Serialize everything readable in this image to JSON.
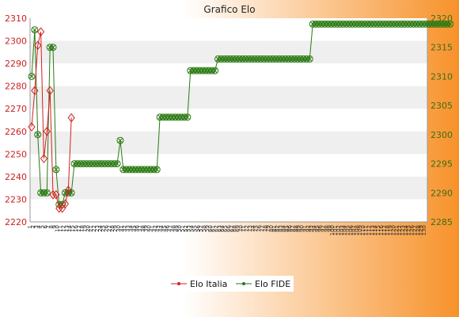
{
  "colors": {
    "background_start": "#ffffff",
    "background_end": "#f7922a",
    "italia": "#d42020",
    "fide": "#2a7a12",
    "band": "#efefef"
  },
  "chart_data": {
    "type": "line",
    "title": "Grafico Elo",
    "xlabel": "",
    "ylabel": "",
    "y_left_lim": [
      2220,
      2310
    ],
    "y_left_ticks": [
      2220,
      2230,
      2240,
      2250,
      2260,
      2270,
      2280,
      2290,
      2300,
      2310
    ],
    "y_right_lim": [
      2285,
      2320
    ],
    "y_right_ticks": [
      2285,
      2290,
      2295,
      2300,
      2305,
      2310,
      2315,
      2320
    ],
    "grid": "horizontal bands",
    "legend_position": "bottom-center",
    "x_tick_labels": [
      "1",
      "2",
      "3",
      "4",
      "5",
      "6",
      "7",
      "8",
      "9",
      "10",
      "11",
      "12",
      "13",
      "14",
      "15",
      "16",
      "17",
      "18",
      "19",
      "20",
      "21",
      "22",
      "23",
      "24",
      "25",
      "26",
      "27",
      "28",
      "29",
      "30",
      "31",
      "32",
      "33",
      "34",
      "35",
      "36",
      "37",
      "38",
      "39",
      "40",
      "41",
      "42",
      "43",
      "44",
      "45",
      "46",
      "47",
      "48",
      "49",
      "50",
      "51",
      "52",
      "53",
      "54",
      "55",
      "56",
      "57",
      "58",
      "59",
      "60",
      "61",
      "62",
      "63",
      "64",
      "65",
      "66",
      "67",
      "68",
      "69",
      "70",
      "71",
      "72",
      "73",
      "74",
      "75",
      "76",
      "77",
      "78",
      "79",
      "80",
      "81",
      "82",
      "83",
      "84",
      "85",
      "86",
      "87",
      "88",
      "89",
      "90",
      "91",
      "92",
      "93",
      "94",
      "95",
      "96",
      "97",
      "98",
      "99",
      "100",
      "101",
      "102",
      "103",
      "104",
      "105",
      "106",
      "107",
      "108",
      "109",
      "110",
      "111",
      "112",
      "113",
      "114",
      "115",
      "116",
      "117",
      "118",
      "119",
      "120",
      "121",
      "122",
      "123",
      "124",
      "125",
      "126",
      "127",
      "128",
      "129",
      "130"
    ],
    "series": [
      {
        "name": "Elo Italia",
        "axis": "left",
        "values": [
          2262,
          2278,
          2298,
          2304,
          2248,
          2260,
          2278,
          2232,
          2232,
          2226,
          2226,
          2228,
          2234,
          2266
        ]
      },
      {
        "name": "Elo FIDE",
        "axis": "right",
        "values": [
          2310,
          2318,
          2300,
          2290,
          2290,
          2290,
          2315,
          2315,
          2294,
          2288,
          2288,
          2290,
          2290,
          2290,
          2295,
          2295,
          2295,
          2295,
          2295,
          2295,
          2295,
          2295,
          2295,
          2295,
          2295,
          2295,
          2295,
          2295,
          2295,
          2299,
          2294,
          2294,
          2294,
          2294,
          2294,
          2294,
          2294,
          2294,
          2294,
          2294,
          2294,
          2294,
          2303,
          2303,
          2303,
          2303,
          2303,
          2303,
          2303,
          2303,
          2303,
          2303,
          2311,
          2311,
          2311,
          2311,
          2311,
          2311,
          2311,
          2311,
          2311,
          2313,
          2313,
          2313,
          2313,
          2313,
          2313,
          2313,
          2313,
          2313,
          2313,
          2313,
          2313,
          2313,
          2313,
          2313,
          2313,
          2313,
          2313,
          2313,
          2313,
          2313,
          2313,
          2313,
          2313,
          2313,
          2313,
          2313,
          2313,
          2313,
          2313,
          2313,
          2319,
          2319,
          2319,
          2319,
          2319,
          2319,
          2319,
          2319,
          2319,
          2319,
          2319,
          2319,
          2319,
          2319,
          2319,
          2319,
          2319,
          2319,
          2319,
          2319,
          2319,
          2319,
          2319,
          2319,
          2319,
          2319,
          2319,
          2319,
          2319,
          2319,
          2319,
          2319,
          2319,
          2319,
          2319,
          2319,
          2319,
          2319,
          2319,
          2319,
          2319,
          2319,
          2319,
          2319,
          2319,
          2319
        ]
      }
    ]
  }
}
